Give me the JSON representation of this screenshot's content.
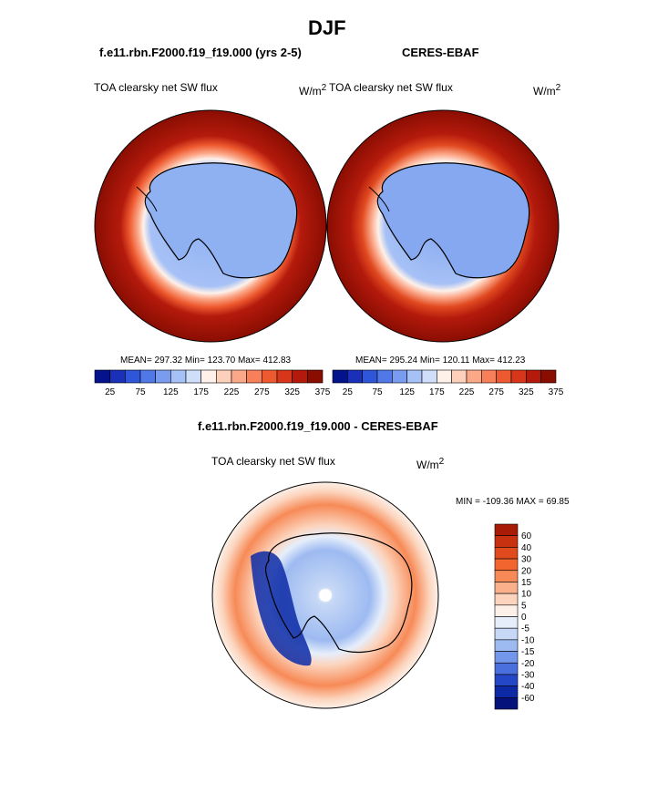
{
  "page_title": "DJF",
  "left_panel": {
    "case": "f.e11.rbn.F2000.f19_f19.000 (yrs 2-5)",
    "variable": "TOA clearsky net SW flux",
    "units_base": "W/m",
    "units_exp": "2",
    "stats": "MEAN= 297.32  Min= 123.70  Max= 412.83"
  },
  "right_panel": {
    "case": "CERES-EBAF",
    "variable": "TOA clearsky net SW flux",
    "units_base": "W/m",
    "units_exp": "2",
    "stats": "MEAN= 295.24  Min= 120.11  Max= 412.23"
  },
  "main_colorbar": {
    "tick_labels": [
      "25",
      "75",
      "125",
      "175",
      "225",
      "275",
      "325",
      "375"
    ],
    "colors": [
      "#04138c",
      "#1b30b8",
      "#2f55d8",
      "#5078e6",
      "#7a9cf0",
      "#a6c1f6",
      "#cfdef9",
      "#fdf1ea",
      "#fcd0bb",
      "#fba889",
      "#f7805b",
      "#ee5a2f",
      "#d8361a",
      "#b41a0c",
      "#8a0d02"
    ]
  },
  "diff_panel": {
    "title": "f.e11.rbn.F2000.f19_f19.000 - CERES-EBAF",
    "variable": "TOA clearsky net SW flux",
    "units_base": "W/m",
    "units_exp": "2",
    "minmax": "MIN = -109.36 MAX =  69.85"
  },
  "diff_colorbar": {
    "tick_labels": [
      "60",
      "40",
      "30",
      "20",
      "15",
      "10",
      "5",
      "0",
      "-5",
      "-10",
      "-15",
      "-20",
      "-30",
      "-40",
      "-60"
    ],
    "colors": [
      "#a81c07",
      "#c7310f",
      "#e04a1c",
      "#f2652f",
      "#f78a57",
      "#fab08a",
      "#fcd4bd",
      "#fdf0e8",
      "#e6eefb",
      "#c6d8f6",
      "#9dbaf1",
      "#7397ea",
      "#4a70de",
      "#2447c7",
      "#0c2aa6",
      "#04137c"
    ]
  }
}
